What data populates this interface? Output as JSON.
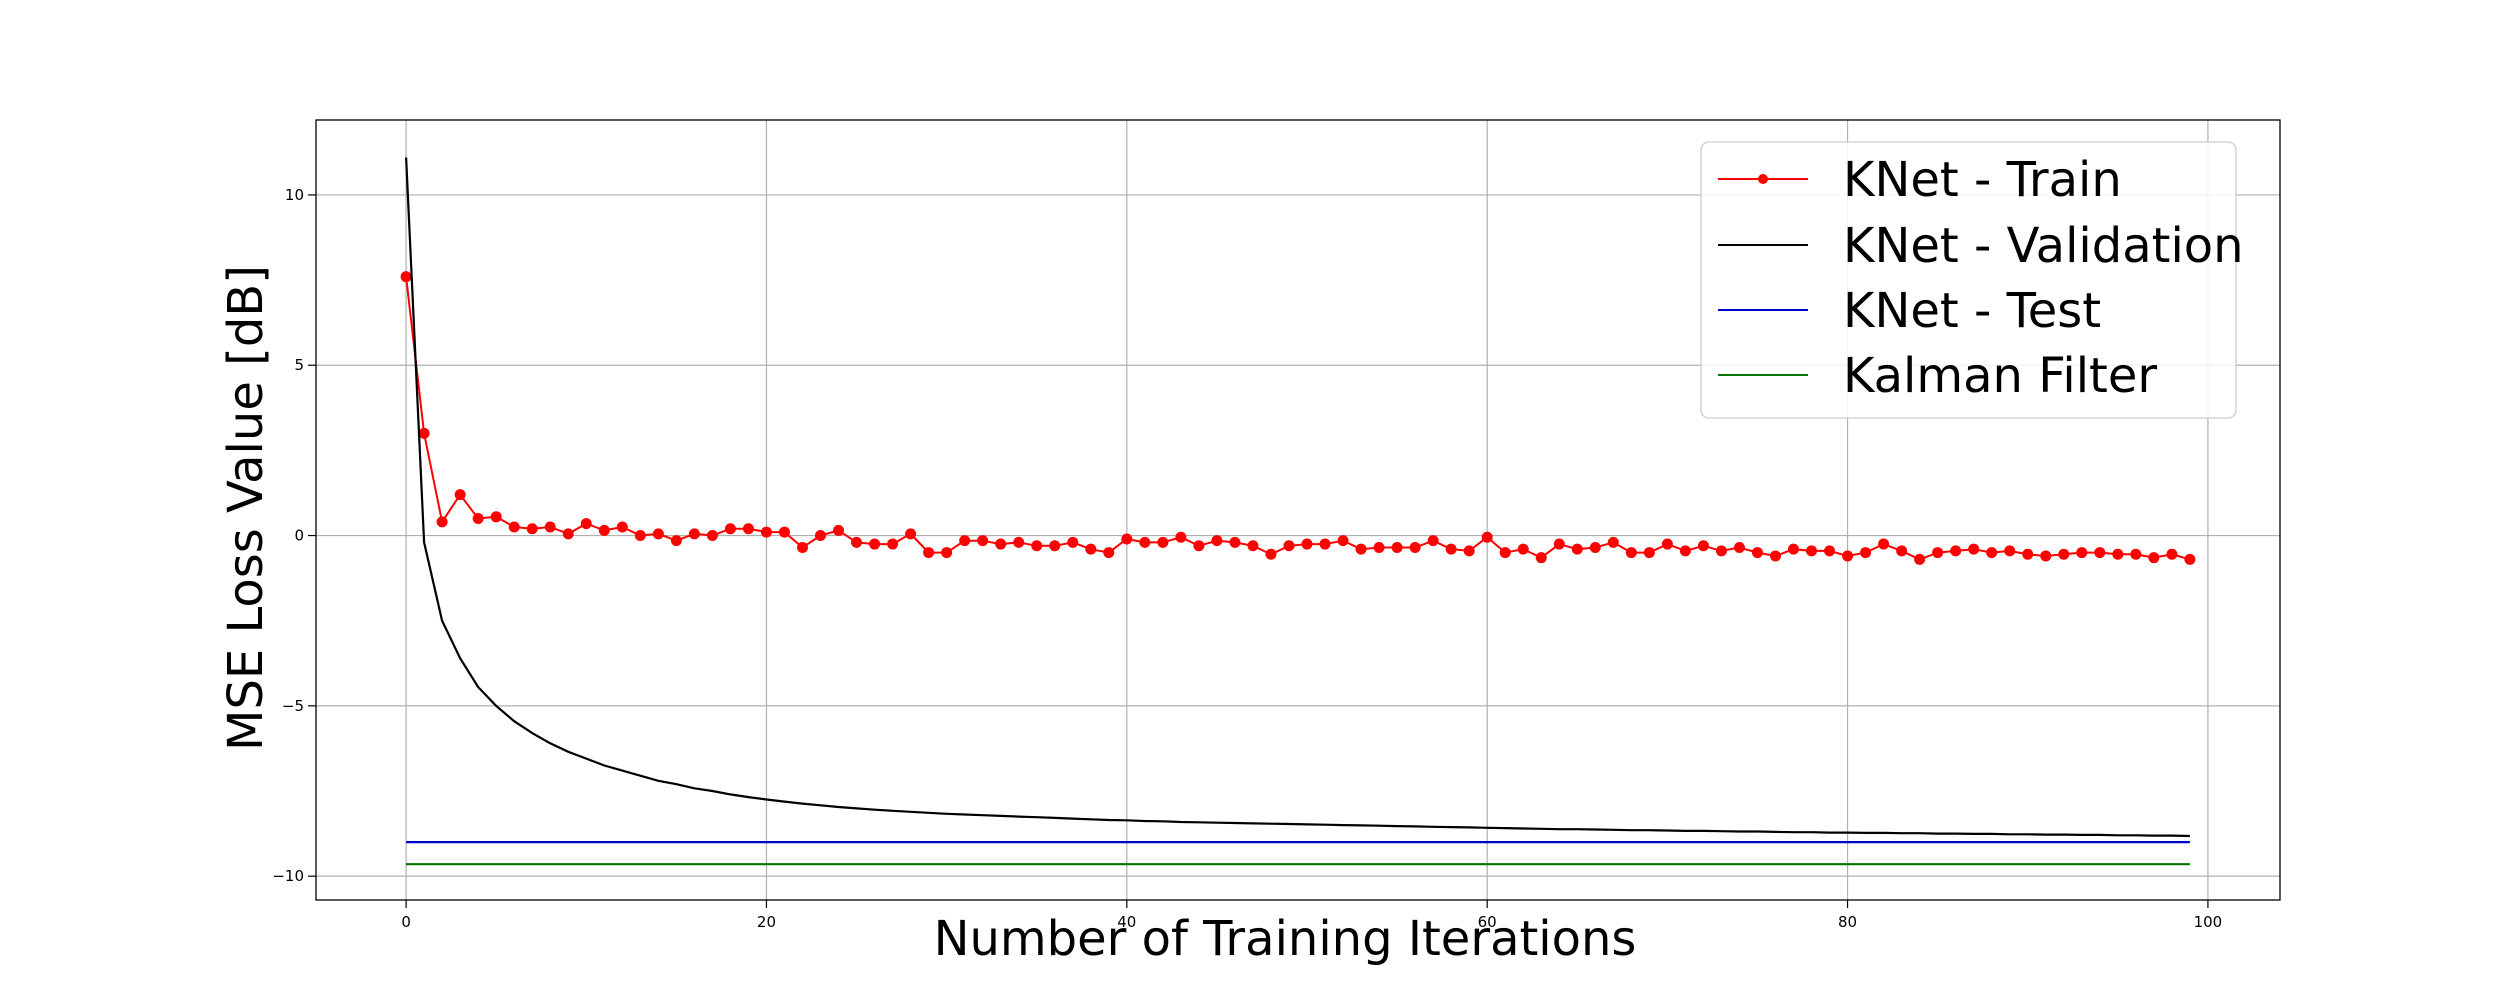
{
  "chart_data": {
    "type": "line",
    "title": "",
    "xlabel": "Number of Training Iterations",
    "ylabel": "MSE Loss Value [dB]",
    "xlim": [
      -5,
      104
    ],
    "ylim": [
      -10.7,
      12.2
    ],
    "xticks": [
      0,
      20,
      40,
      60,
      80,
      100
    ],
    "yticks": [
      10,
      5,
      0,
      -5,
      -10
    ],
    "ytick_labels": [
      "10",
      "5",
      "0",
      "−5",
      "−10"
    ],
    "grid": true,
    "legend_position": "top-right",
    "series": [
      {
        "name": "KNet - Train",
        "color": "#ff0000",
        "marker": "circle",
        "x": [
          0,
          1,
          2,
          3,
          4,
          5,
          6,
          7,
          8,
          9,
          10,
          11,
          12,
          13,
          14,
          15,
          16,
          17,
          18,
          19,
          20,
          21,
          22,
          23,
          24,
          25,
          26,
          27,
          28,
          29,
          30,
          31,
          32,
          33,
          34,
          35,
          36,
          37,
          38,
          39,
          40,
          41,
          42,
          43,
          44,
          45,
          46,
          47,
          48,
          49,
          50,
          51,
          52,
          53,
          54,
          55,
          56,
          57,
          58,
          59,
          60,
          61,
          62,
          63,
          64,
          65,
          66,
          67,
          68,
          69,
          70,
          71,
          72,
          73,
          74,
          75,
          76,
          77,
          78,
          79,
          80,
          81,
          82,
          83,
          84,
          85,
          86,
          87,
          88,
          89,
          90,
          91,
          92,
          93,
          94,
          95,
          96,
          97,
          98,
          99
        ],
        "values": [
          7.6,
          3.0,
          0.4,
          1.2,
          0.5,
          0.55,
          0.25,
          0.2,
          0.25,
          0.05,
          0.35,
          0.15,
          0.25,
          0.0,
          0.05,
          -0.15,
          0.05,
          0.0,
          0.2,
          0.2,
          0.1,
          0.1,
          -0.35,
          0.0,
          0.15,
          -0.2,
          -0.25,
          -0.25,
          0.05,
          -0.5,
          -0.5,
          -0.15,
          -0.15,
          -0.25,
          -0.2,
          -0.3,
          -0.3,
          -0.2,
          -0.4,
          -0.5,
          -0.1,
          -0.2,
          -0.2,
          -0.05,
          -0.3,
          -0.15,
          -0.2,
          -0.3,
          -0.55,
          -0.3,
          -0.25,
          -0.25,
          -0.15,
          -0.4,
          -0.35,
          -0.35,
          -0.35,
          -0.15,
          -0.4,
          -0.45,
          -0.05,
          -0.5,
          -0.4,
          -0.65,
          -0.25,
          -0.4,
          -0.35,
          -0.2,
          -0.5,
          -0.5,
          -0.25,
          -0.45,
          -0.3,
          -0.45,
          -0.35,
          -0.5,
          -0.6,
          -0.4,
          -0.45,
          -0.45,
          -0.6,
          -0.5,
          -0.25,
          -0.45,
          -0.7,
          -0.5,
          -0.45,
          -0.4,
          -0.5,
          -0.45,
          -0.55,
          -0.6,
          -0.55,
          -0.5,
          -0.5,
          -0.55,
          -0.55,
          -0.65,
          -0.55,
          -0.7
        ]
      },
      {
        "name": "KNet - Validation",
        "color": "#000000",
        "marker": "none",
        "x": [
          0,
          1,
          2,
          3,
          4,
          5,
          6,
          7,
          8,
          9,
          10,
          11,
          12,
          13,
          14,
          15,
          16,
          17,
          18,
          19,
          20,
          21,
          22,
          23,
          24,
          25,
          26,
          27,
          28,
          29,
          30,
          31,
          32,
          33,
          34,
          35,
          36,
          37,
          38,
          39,
          40,
          41,
          42,
          43,
          44,
          45,
          46,
          47,
          48,
          49,
          50,
          51,
          52,
          53,
          54,
          55,
          56,
          57,
          58,
          59,
          60,
          61,
          62,
          63,
          64,
          65,
          66,
          67,
          68,
          69,
          70,
          71,
          72,
          73,
          74,
          75,
          76,
          77,
          78,
          79,
          80,
          81,
          82,
          83,
          84,
          85,
          86,
          87,
          88,
          89,
          90,
          91,
          92,
          93,
          94,
          95,
          96,
          97,
          98,
          99
        ],
        "values": [
          11.1,
          -0.2,
          -2.5,
          -3.6,
          -4.45,
          -5.0,
          -5.45,
          -5.8,
          -6.1,
          -6.35,
          -6.55,
          -6.75,
          -6.9,
          -7.05,
          -7.2,
          -7.3,
          -7.42,
          -7.5,
          -7.6,
          -7.68,
          -7.75,
          -7.81,
          -7.87,
          -7.92,
          -7.97,
          -8.01,
          -8.05,
          -8.08,
          -8.11,
          -8.14,
          -8.17,
          -8.19,
          -8.21,
          -8.23,
          -8.25,
          -8.27,
          -8.29,
          -8.31,
          -8.33,
          -8.35,
          -8.36,
          -8.38,
          -8.39,
          -8.41,
          -8.42,
          -8.43,
          -8.44,
          -8.45,
          -8.46,
          -8.47,
          -8.48,
          -8.49,
          -8.5,
          -8.51,
          -8.52,
          -8.53,
          -8.54,
          -8.55,
          -8.56,
          -8.57,
          -8.58,
          -8.59,
          -8.6,
          -8.61,
          -8.62,
          -8.62,
          -8.63,
          -8.64,
          -8.65,
          -8.65,
          -8.66,
          -8.67,
          -8.67,
          -8.68,
          -8.69,
          -8.69,
          -8.7,
          -8.71,
          -8.71,
          -8.72,
          -8.72,
          -8.73,
          -8.73,
          -8.74,
          -8.74,
          -8.75,
          -8.75,
          -8.76,
          -8.76,
          -8.77,
          -8.77,
          -8.78,
          -8.78,
          -8.79,
          -8.79,
          -8.8,
          -8.8,
          -8.81,
          -8.81,
          -8.82
        ]
      },
      {
        "name": "KNet - Test",
        "color": "#0000cc",
        "marker": "none",
        "x": [
          0,
          99
        ],
        "values": [
          -9.0,
          -9.0
        ]
      },
      {
        "name": "Kalman Filter",
        "color": "#007700",
        "marker": "none",
        "x": [
          0,
          99
        ],
        "values": [
          -9.65,
          -9.65
        ]
      }
    ]
  }
}
